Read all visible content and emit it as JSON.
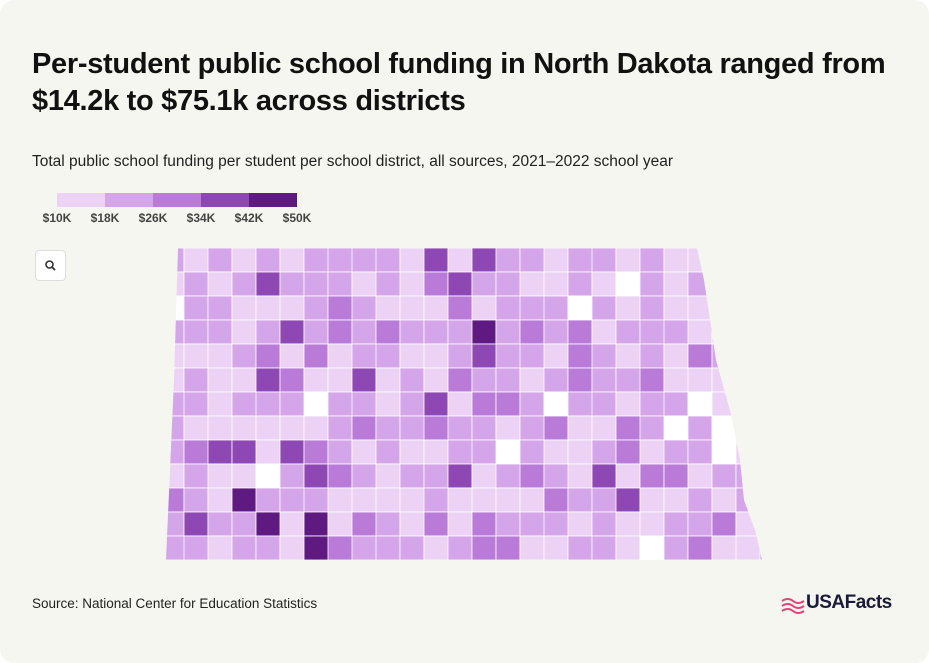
{
  "header": {
    "title": "Per-student public school funding in North Dakota ranged from $14.2k to $75.1k across districts",
    "subtitle": "Total public school funding per student per school district, all sources, 2021–2022 school year"
  },
  "legend": {
    "labels": [
      "$10K",
      "$18K",
      "$26K",
      "$34K",
      "$42K",
      "$50K"
    ],
    "colors": [
      "#ecd3f5",
      "#d4a5e8",
      "#b97ad8",
      "#8e48b3",
      "#5e1a80"
    ]
  },
  "footer": {
    "source": "Source: National Center for Education Statistics",
    "logo": "USAFacts"
  }
}
